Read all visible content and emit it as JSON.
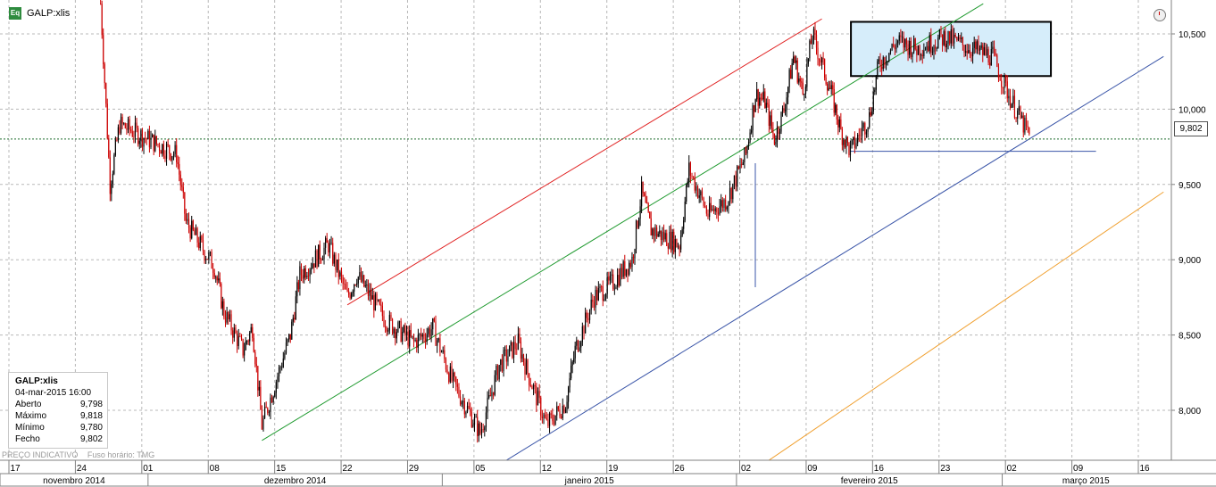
{
  "header": {
    "badge": "Eq",
    "symbol": "GALP:xlis"
  },
  "info_panel": {
    "title": "GALP:xlis",
    "datetime": "04-mar-2015 16:00",
    "rows": [
      {
        "label": "Aberto",
        "value": "9,798"
      },
      {
        "label": "Máximo",
        "value": "9,818"
      },
      {
        "label": "Mínimo",
        "value": "9,780"
      },
      {
        "label": "Fecho",
        "value": "9,802"
      }
    ]
  },
  "footnote": {
    "price_type": "PREÇO INDICATIVO",
    "timezone": "Fuso horário: TMG"
  },
  "last_price_label": "9,802",
  "colors": {
    "candle_down": "#cc0000",
    "candle_up": "#000000",
    "grid": "#b8b8b8",
    "channel_upper": "#e02020",
    "channel_middle": "#1f9a2f",
    "channel_lower": "#3a55a8",
    "channel_outer": "#f0a030",
    "box_fill": "#d6edfa",
    "box_border": "#000000"
  },
  "chart_data": {
    "type": "candlestick",
    "title": "GALP:xlis",
    "ylim": [
      7.65,
      10.7
    ],
    "y_ticks": [
      "10,500",
      "10,000",
      "9,500",
      "9,000",
      "8,500",
      "8,000"
    ],
    "y_tick_values": [
      10.5,
      10.0,
      9.5,
      9.0,
      8.5,
      8.0
    ],
    "last_price": 9.802,
    "grid": true,
    "x_day_ticks": [
      "17",
      "24",
      "01",
      "08",
      "15",
      "22",
      "29",
      "05",
      "12",
      "19",
      "26",
      "02",
      "09",
      "16",
      "23",
      "02",
      "09",
      "16"
    ],
    "x_months": [
      "novembro 2014",
      "dezembro 2014",
      "janeiro 2015",
      "fevereiro 2015",
      "março 2015"
    ],
    "price_path": [
      [
        "2014-11-26",
        10.7
      ],
      [
        "2014-11-27",
        9.5
      ],
      [
        "2014-11-28",
        9.9
      ],
      [
        "2014-12-01",
        9.8
      ],
      [
        "2014-12-04",
        9.7
      ],
      [
        "2014-12-05",
        9.25
      ],
      [
        "2014-12-08",
        8.95
      ],
      [
        "2014-12-09",
        8.65
      ],
      [
        "2014-12-11",
        8.4
      ],
      [
        "2014-12-12",
        8.55
      ],
      [
        "2014-12-13",
        7.9
      ],
      [
        "2014-12-16",
        8.5
      ],
      [
        "2014-12-17",
        8.9
      ],
      [
        "2014-12-20",
        9.1
      ],
      [
        "2014-12-22",
        8.75
      ],
      [
        "2014-12-23",
        8.9
      ],
      [
        "2014-12-26",
        8.6
      ],
      [
        "2014-12-29",
        8.45
      ],
      [
        "2014-12-31",
        8.55
      ],
      [
        "2015-01-02",
        8.2
      ],
      [
        "2015-01-05",
        7.85
      ],
      [
        "2015-01-07",
        8.3
      ],
      [
        "2015-01-09",
        8.45
      ],
      [
        "2015-01-10",
        8.25
      ],
      [
        "2015-01-12",
        7.9
      ],
      [
        "2015-01-14",
        8.05
      ],
      [
        "2015-01-15",
        8.4
      ],
      [
        "2015-01-17",
        8.75
      ],
      [
        "2015-01-19",
        8.85
      ],
      [
        "2015-01-21",
        9.0
      ],
      [
        "2015-01-22",
        9.45
      ],
      [
        "2015-01-23",
        9.2
      ],
      [
        "2015-01-26",
        9.1
      ],
      [
        "2015-01-27",
        9.6
      ],
      [
        "2015-01-29",
        9.3
      ],
      [
        "2015-01-31",
        9.4
      ],
      [
        "2015-02-02",
        9.7
      ],
      [
        "2015-02-03",
        10.1
      ],
      [
        "2015-02-04",
        10.05
      ],
      [
        "2015-02-05",
        9.8
      ],
      [
        "2015-02-06",
        10.0
      ],
      [
        "2015-02-07",
        10.35
      ],
      [
        "2015-02-08",
        10.1
      ],
      [
        "2015-02-09",
        10.5
      ],
      [
        "2015-02-10",
        10.3
      ],
      [
        "2015-02-11",
        10.1
      ],
      [
        "2015-02-12",
        9.85
      ],
      [
        "2015-02-13",
        9.72
      ],
      [
        "2015-02-15",
        9.95
      ],
      [
        "2015-02-16",
        10.3
      ],
      [
        "2015-02-18",
        10.45
      ],
      [
        "2015-02-20",
        10.4
      ],
      [
        "2015-02-23",
        10.48
      ],
      [
        "2015-02-25",
        10.42
      ],
      [
        "2015-02-28",
        10.35
      ],
      [
        "2015-03-02",
        10.05
      ],
      [
        "2015-03-04",
        9.8
      ]
    ],
    "annotations": {
      "resistance_zone": {
        "y_low": 10.22,
        "y_high": 10.58,
        "x_start": "2015-02-14",
        "x_end": "2015-03-05"
      },
      "support_line": {
        "y": 9.72,
        "x_start": "2015-02-13",
        "x_end": "2015-03-09"
      },
      "channel_upper": [
        [
          "2014-12-22",
          8.7
        ],
        [
          "2015-02-10",
          10.6
        ]
      ],
      "channel_middle": [
        [
          "2014-12-13",
          7.8
        ],
        [
          "2015-02-27",
          10.7
        ]
      ],
      "channel_lower": [
        [
          "2015-01-06",
          7.6
        ],
        [
          "2015-03-18",
          10.35
        ]
      ],
      "channel_outer": [
        [
          "2015-02-04",
          7.65
        ],
        [
          "2015-03-18",
          9.45
        ]
      ]
    }
  }
}
